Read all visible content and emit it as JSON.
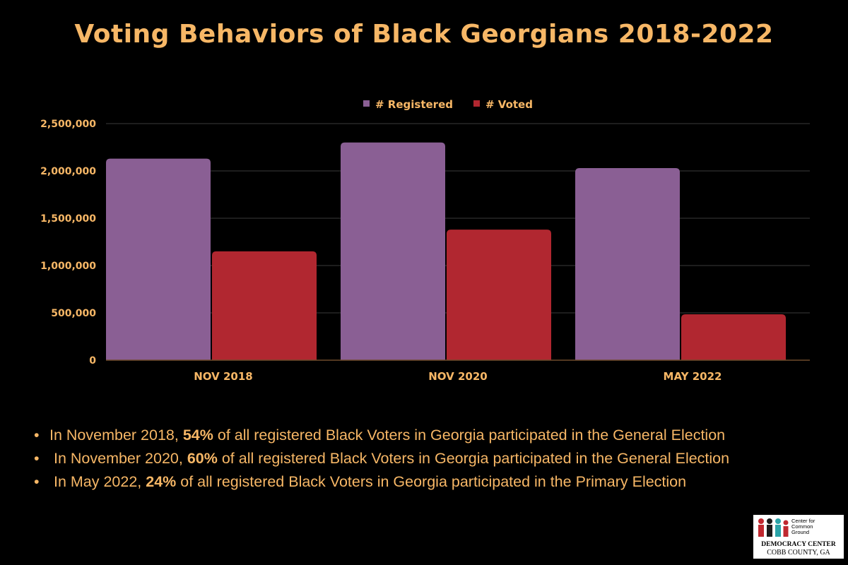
{
  "title": "Voting Behaviors of Black Georgians 2018-2022",
  "chart_data": {
    "type": "bar",
    "categories": [
      "NOV 2018",
      "NOV 2020",
      "MAY 2022"
    ],
    "series": [
      {
        "name": "# Registered",
        "values": [
          2130000,
          2300000,
          2030000
        ],
        "color": "#8a5f94"
      },
      {
        "name": "# Voted",
        "values": [
          1150000,
          1380000,
          485000
        ],
        "color": "#b12730"
      }
    ],
    "ylim": [
      0,
      2500000
    ],
    "yticks": [
      0,
      500000,
      1000000,
      1500000,
      2000000,
      2500000
    ],
    "ytick_labels": [
      "0",
      "500,000",
      "1,000,000",
      "1,500,000",
      "2,000,000",
      "2,500,000"
    ],
    "grid": true,
    "legend": "top-center",
    "xlabel": "",
    "ylabel": ""
  },
  "bullets": [
    {
      "pre": "In November 2018, ",
      "bold": "54%",
      "post": " of all registered Black Voters in Georgia participated in the General  Election"
    },
    {
      "pre": " In November 2020,  ",
      "bold": "60%",
      "post": " of all registered Black Voters in Georgia participated in the General Election"
    },
    {
      "pre": "  In May 2022, ",
      "bold": "24%",
      "post": " of all registered Black Voters in Georgia participated in the Primary Election"
    }
  ],
  "logo": {
    "org_lines": [
      "Center for",
      "Common",
      "Ground"
    ],
    "line1": "DEMOCRACY CENTER",
    "line2": "COBB COUNTY, GA"
  },
  "colors": {
    "accent": "#f7b766",
    "background": "#000000",
    "grid": "#3a3a3a"
  }
}
